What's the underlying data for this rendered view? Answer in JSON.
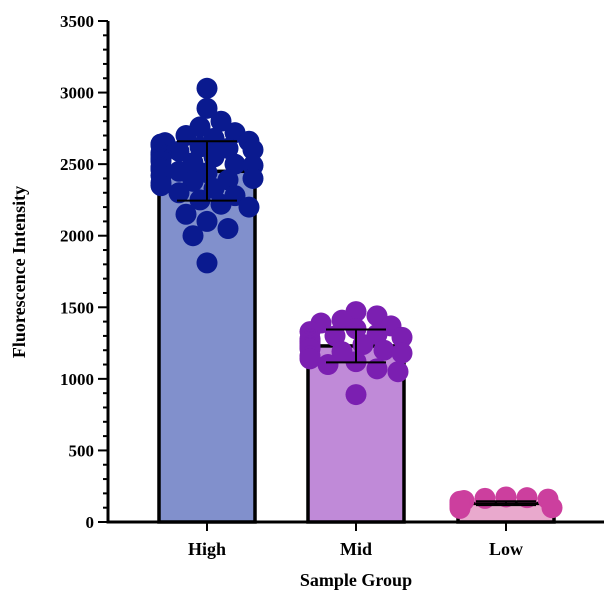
{
  "chart_data": {
    "type": "bar",
    "xlabel": "Sample Group",
    "ylabel": "Fluorescence Intensity",
    "ylim": [
      0,
      3500
    ],
    "yticks": [
      0,
      500,
      1000,
      1500,
      2000,
      2500,
      3000,
      3500
    ],
    "grid": false,
    "categories": [
      "High",
      "Mid",
      "Low"
    ],
    "values": [
      2450,
      1230,
      130
    ],
    "error_low": [
      2245,
      1115,
      118
    ],
    "error_high": [
      2660,
      1345,
      145
    ],
    "colors": {
      "bar_fill": [
        "#8190cc",
        "#c08ad8",
        "#e9a9cd"
      ],
      "point_fill": [
        "#0a1a8f",
        "#7b1fb1",
        "#cc3f9e"
      ]
    },
    "points": [
      [
        3030,
        2890,
        2800,
        2760,
        2720,
        2700,
        2680,
        2660,
        2650,
        2640,
        2640,
        2630,
        2620,
        2610,
        2600,
        2590,
        2580,
        2570,
        2560,
        2550,
        2540,
        2530,
        2520,
        2510,
        2500,
        2490,
        2480,
        2470,
        2460,
        2450,
        2440,
        2420,
        2400,
        2390,
        2380,
        2370,
        2350,
        2330,
        2300,
        2280,
        2250,
        2220,
        2200,
        2150,
        2100,
        2050,
        2000,
        1810
      ],
      [
        1470,
        1440,
        1410,
        1390,
        1370,
        1350,
        1330,
        1310,
        1300,
        1290,
        1280,
        1270,
        1260,
        1250,
        1240,
        1230,
        1220,
        1210,
        1200,
        1190,
        1180,
        1160,
        1140,
        1120,
        1100,
        1070,
        1050,
        890
      ],
      [
        175,
        170,
        165,
        160,
        150,
        145,
        140,
        135,
        130,
        125,
        120,
        115,
        110,
        105,
        100,
        95
      ]
    ]
  }
}
